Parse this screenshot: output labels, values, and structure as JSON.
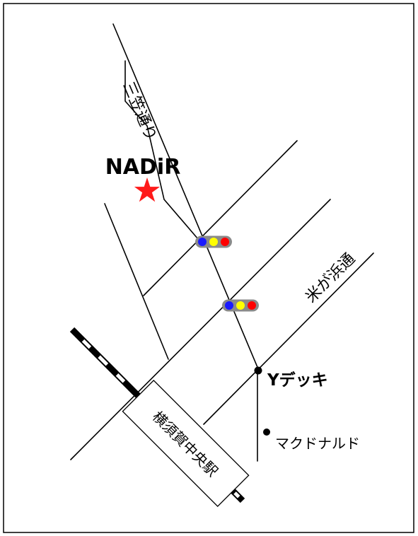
{
  "map": {
    "destination": {
      "name": "NADiR",
      "marker_color": "#ff1a1a"
    },
    "streets": {
      "mikasa_dori": "三笠通り",
      "yonegahama_dori": "米が浜通"
    },
    "station": {
      "name": "横須賀中央駅"
    },
    "landmarks": {
      "y_deck": "Yデッキ",
      "mcdonalds": "マクドナルド"
    },
    "traffic_light": {
      "colors": [
        "#1a1aff",
        "#ffff00",
        "#ff0000"
      ],
      "housing_color": "#8a8a8a"
    },
    "colors": {
      "line": "#000000",
      "background": "#ffffff",
      "frame": "#000000"
    }
  }
}
